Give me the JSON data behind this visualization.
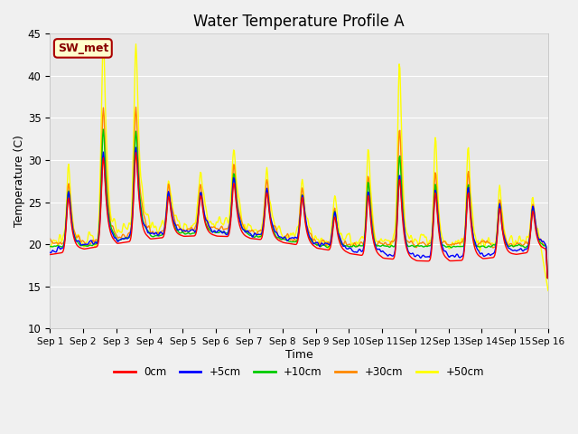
{
  "title": "Water Temperature Profile A",
  "xlabel": "Time",
  "ylabel": "Temperature (C)",
  "ylim": [
    10,
    45
  ],
  "yticks": [
    10,
    15,
    20,
    25,
    30,
    35,
    40,
    45
  ],
  "colors": {
    "0cm": "#ff0000",
    "+5cm": "#0000ff",
    "+10cm": "#00cc00",
    "+30cm": "#ff8800",
    "+50cm": "#ffff00"
  },
  "legend_labels": [
    "0cm",
    "+5cm",
    "+10cm",
    "+30cm",
    "+50cm"
  ],
  "annotation_text": "SW_met",
  "annotation_bg": "#ffffcc",
  "annotation_border": "#aa0000",
  "plot_bg": "#e8e8e8",
  "fig_bg": "#f0f0f0",
  "grid_color": "#ffffff",
  "num_days": 15,
  "figsize": [
    6.4,
    4.8
  ],
  "dpi": 100
}
